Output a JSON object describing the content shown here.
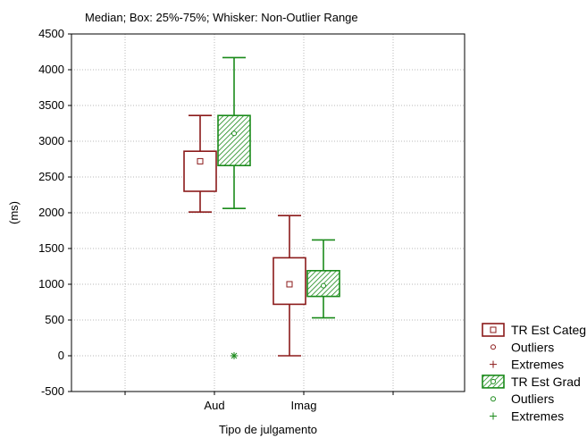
{
  "chart_data": {
    "type": "box",
    "title": "Median; Box: 25%-75%; Whisker: Non-Outlier Range",
    "xlabel": "Tipo de julgamento",
    "ylabel": "(ms)",
    "categories": [
      "Aud",
      "Imag"
    ],
    "ylim": [
      -500,
      4500
    ],
    "yticks": [
      -500,
      0,
      500,
      1000,
      1500,
      2000,
      2500,
      3000,
      3500,
      4000,
      4500
    ],
    "grid": true,
    "legend_position": "right-bottom",
    "series": [
      {
        "name": "TR Est Categ",
        "color": "#8b1a1a",
        "fill": "none",
        "boxes": [
          {
            "category": "Aud",
            "median": 2720,
            "q1": 2300,
            "q3": 2860,
            "whisker_low": 2010,
            "whisker_high": 3360
          },
          {
            "category": "Imag",
            "median": 1000,
            "q1": 720,
            "q3": 1370,
            "whisker_low": 0,
            "whisker_high": 1960
          }
        ],
        "outliers": [],
        "extremes": []
      },
      {
        "name": "TR Est Grad",
        "color": "#1a8a1a",
        "fill": "hatched",
        "boxes": [
          {
            "category": "Aud",
            "median": 3110,
            "q1": 2660,
            "q3": 3360,
            "whisker_low": 2060,
            "whisker_high": 4170
          },
          {
            "category": "Imag",
            "median": 980,
            "q1": 830,
            "q3": 1190,
            "whisker_low": 530,
            "whisker_high": 1620
          }
        ],
        "outliers": [],
        "extremes": [
          {
            "category": "Aud",
            "value": 0
          }
        ]
      }
    ],
    "legend": [
      {
        "label": "TR Est Categ",
        "symbol": "box",
        "color": "#8b1a1a"
      },
      {
        "label": "Outliers",
        "symbol": "circle",
        "color": "#8b1a1a"
      },
      {
        "label": "Extremes",
        "symbol": "star",
        "color": "#8b1a1a"
      },
      {
        "label": "TR Est Grad",
        "symbol": "box-hatched",
        "color": "#1a8a1a"
      },
      {
        "label": "Outliers",
        "symbol": "circle",
        "color": "#1a8a1a"
      },
      {
        "label": "Extremes",
        "symbol": "star",
        "color": "#1a8a1a"
      }
    ]
  }
}
